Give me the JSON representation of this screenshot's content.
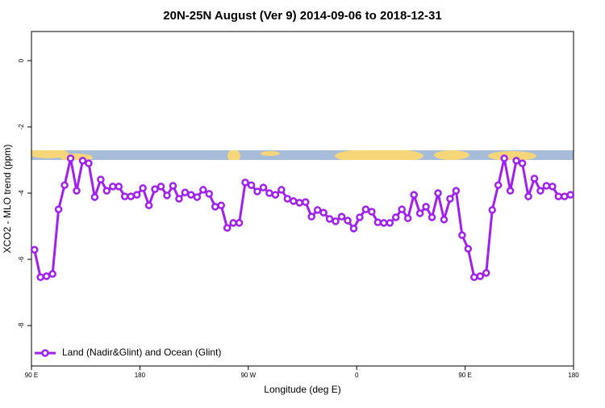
{
  "chart_data": {
    "type": "line",
    "title": "20N-25N August (Ver 9)   2014-09-06 to 2018-12-31",
    "xlabel": "Longitude (deg E)",
    "ylabel": "XCO2 - MLO trend (ppm)",
    "xlim": [
      90,
      540
    ],
    "ylim": [
      0.88,
      -9.22
    ],
    "xticks": [
      {
        "value": 90,
        "label": "90 E"
      },
      180,
      {
        "value": 270,
        "label": "90 W"
      },
      {
        "value": 360,
        "label": "0"
      },
      {
        "value": 450,
        "label": "90 E"
      },
      {
        "value": 540,
        "label": "180"
      }
    ],
    "yticks": [
      0,
      -2,
      -4,
      -6,
      -8
    ],
    "legend": "bottom-left",
    "series": [
      {
        "name": "Land (Nadir&Glint) and Ocean (Glint)",
        "color": "#a020f0",
        "x": [
          92.5,
          97.5,
          102.5,
          107.5,
          112.5,
          117.5,
          122.5,
          127.5,
          132.5,
          137.5,
          142.5,
          147.5,
          152.5,
          157.5,
          162.5,
          167.5,
          172.5,
          177.5,
          182.5,
          187.5,
          192.5,
          197.5,
          202.5,
          207.5,
          212.5,
          217.5,
          222.5,
          227.5,
          232.5,
          237.5,
          242.5,
          247.5,
          252.5,
          257.5,
          262.5,
          267.5,
          272.5,
          277.5,
          282.5,
          287.5,
          292.5,
          297.5,
          302.5,
          307.5,
          312.5,
          317.5,
          322.5,
          327.5,
          332.5,
          337.5,
          342.5,
          347.5,
          352.5,
          357.5,
          362.5,
          367.5,
          372.5,
          377.5,
          382.5,
          387.5,
          392.5,
          397.5,
          402.5,
          407.5,
          412.5,
          417.5,
          422.5,
          427.5,
          432.5,
          437.5,
          442.5,
          447.5,
          452.5,
          457.5,
          462.5,
          467.5,
          472.5,
          477.5,
          482.5,
          487.5,
          492.5,
          497.5,
          502.5,
          507.5,
          512.5,
          517.5,
          522.5,
          527.5,
          532.5,
          537.5
        ],
        "values": [
          -5.71,
          -6.54,
          -6.51,
          -6.44,
          -4.49,
          -3.76,
          -2.95,
          -3.93,
          -3.02,
          -3.1,
          -4.12,
          -3.59,
          -3.93,
          -3.8,
          -3.8,
          -4.1,
          -4.1,
          -4.05,
          -3.85,
          -4.37,
          -3.88,
          -3.8,
          -4.07,
          -3.78,
          -4.17,
          -3.98,
          -4.05,
          -4.12,
          -3.9,
          -4.02,
          -4.41,
          -4.37,
          -5.05,
          -4.9,
          -4.9,
          -3.68,
          -3.76,
          -3.95,
          -3.83,
          -4.0,
          -4.05,
          -3.9,
          -4.17,
          -4.24,
          -4.29,
          -4.27,
          -4.71,
          -4.51,
          -4.59,
          -4.78,
          -4.85,
          -4.71,
          -4.83,
          -5.07,
          -4.73,
          -4.49,
          -4.56,
          -4.88,
          -4.9,
          -4.9,
          -4.73,
          -4.49,
          -4.76,
          -4.05,
          -4.61,
          -4.41,
          -4.73,
          -4.0,
          -4.8,
          -4.17,
          -3.93,
          -5.27,
          -5.68,
          -6.54,
          -6.51,
          -6.41,
          -4.51,
          -3.76,
          -2.95,
          -3.93,
          -3.02,
          -3.1,
          -4.1,
          -3.56,
          -3.93,
          -3.78,
          -3.8,
          -4.1,
          -4.1,
          -4.05
        ]
      }
    ]
  }
}
